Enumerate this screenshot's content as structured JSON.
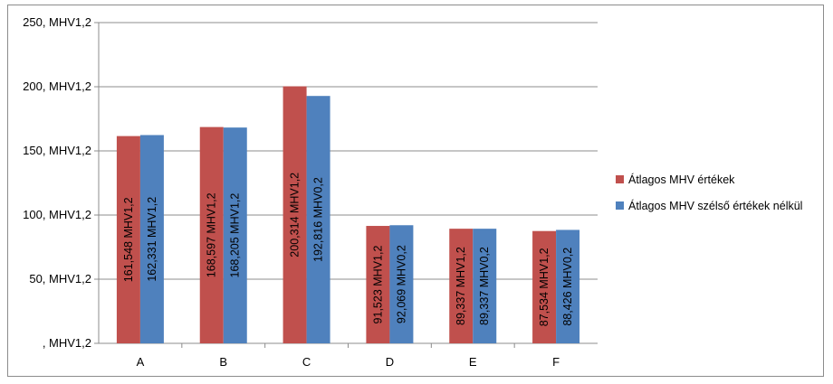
{
  "chart_data": {
    "type": "bar",
    "title": "",
    "xlabel": "",
    "ylabel": "",
    "ylim": [
      0,
      250
    ],
    "y_ticks": [
      {
        "value": 0,
        "label": ", MHV1,2"
      },
      {
        "value": 50,
        "label": "50, MHV1,2"
      },
      {
        "value": 100,
        "label": "100, MHV1,2"
      },
      {
        "value": 150,
        "label": "150, MHV1,2"
      },
      {
        "value": 200,
        "label": "200, MHV1,2"
      },
      {
        "value": 250,
        "label": "250, MHV1,2"
      }
    ],
    "grid": true,
    "legend_position": "right",
    "categories": [
      "A",
      "B",
      "C",
      "D",
      "E",
      "F"
    ],
    "series": [
      {
        "name": "Átlagos MHV értékek",
        "color": "#c0504d",
        "values": [
          161.548,
          168.597,
          200.314,
          91.523,
          89.337,
          87.534
        ],
        "labels": [
          "161,548 MHV1,2",
          "168,597 MHV1,2",
          "200,314 MHV1,2",
          "91,523 MHV1,2",
          "89,337 MHV1,2",
          "87,534 MHV1,2"
        ]
      },
      {
        "name": "Átlagos MHV szélső értékek nélkül",
        "color": "#4f81bd",
        "values": [
          162.331,
          168.205,
          192.816,
          92.069,
          89.337,
          88.426
        ],
        "labels": [
          "162,331 MHV1,2",
          "168,205 MHV1,2",
          "192,816 MHV0,2",
          "92,069 MHV0,2",
          "89,337 MHV0,2",
          "88,426 MHV0,2"
        ]
      }
    ]
  }
}
